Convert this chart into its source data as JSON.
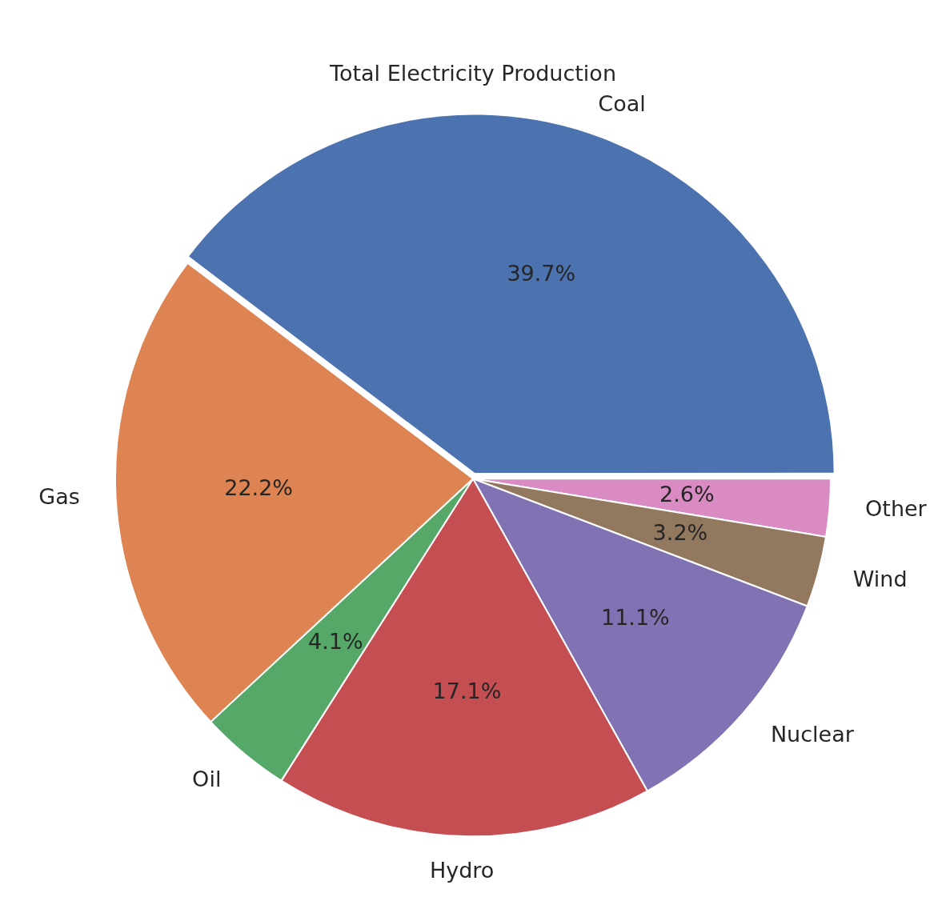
{
  "chart_data": {
    "type": "pie",
    "title": "Total Electricity Production",
    "categories": [
      "Coal",
      "Gas",
      "Oil",
      "Hydro",
      "Nuclear",
      "Wind",
      "Other"
    ],
    "values": [
      39.7,
      22.2,
      4.1,
      17.1,
      11.1,
      3.2,
      2.6
    ],
    "colors": [
      "#4c72b0",
      "#dd8452",
      "#55a868",
      "#c44e52",
      "#8172b3",
      "#937860",
      "#da8bc3"
    ],
    "value_labels": [
      "39.7%",
      "22.2%",
      "4.1%",
      "17.1%",
      "11.1%",
      "3.2%",
      "2.6%"
    ],
    "legend": false
  }
}
